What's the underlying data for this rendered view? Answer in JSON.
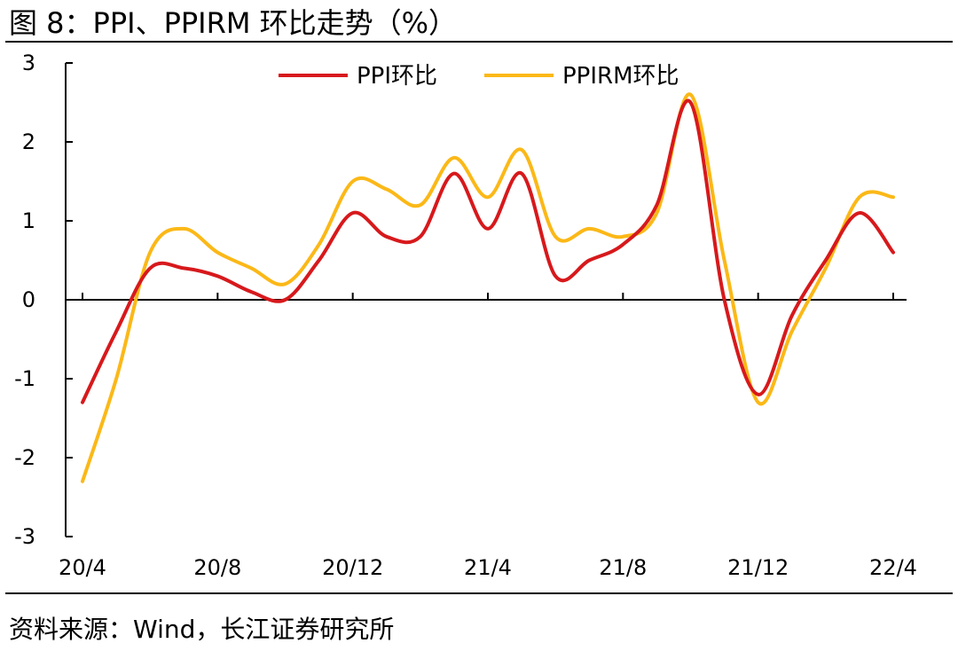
{
  "header": {
    "title": "图 8：PPI、PPIRM 环比走势（%）"
  },
  "footer": {
    "source": "资料来源：Wind，长江证券研究所"
  },
  "chart_data": {
    "type": "line",
    "title": "图 8：PPI、PPIRM 环比走势（%）",
    "ylim": [
      -3,
      3
    ],
    "yticks": [
      -3,
      -2,
      -1,
      0,
      1,
      2,
      3
    ],
    "xtick_labels": [
      "20/4",
      "20/8",
      "20/12",
      "21/4",
      "21/8",
      "21/12",
      "22/4"
    ],
    "xtick_indices": [
      0,
      4,
      8,
      12,
      16,
      20,
      24
    ],
    "grid": false,
    "legend": "top-center",
    "x": [
      "20/4",
      "20/5",
      "20/6",
      "20/7",
      "20/8",
      "20/9",
      "20/10",
      "20/11",
      "20/12",
      "21/1",
      "21/2",
      "21/3",
      "21/4",
      "21/5",
      "21/6",
      "21/7",
      "21/8",
      "21/9",
      "21/10",
      "21/11",
      "21/12",
      "22/1",
      "22/2",
      "22/3",
      "22/4"
    ],
    "series": [
      {
        "name": "PPI环比",
        "color": "#d7191c",
        "values": [
          -1.3,
          -0.4,
          0.4,
          0.4,
          0.3,
          0.1,
          0.0,
          0.5,
          1.1,
          0.8,
          0.8,
          1.6,
          0.9,
          1.6,
          0.3,
          0.5,
          0.7,
          1.2,
          2.5,
          0.0,
          -1.2,
          -0.2,
          0.5,
          1.1,
          0.6
        ]
      },
      {
        "name": "PPIRM环比",
        "color": "#fbb817",
        "values": [
          -2.3,
          -1.0,
          0.6,
          0.9,
          0.6,
          0.4,
          0.2,
          0.7,
          1.5,
          1.4,
          1.2,
          1.8,
          1.3,
          1.9,
          0.8,
          0.9,
          0.8,
          1.1,
          2.6,
          0.5,
          -1.3,
          -0.4,
          0.4,
          1.3,
          1.3
        ]
      }
    ]
  }
}
